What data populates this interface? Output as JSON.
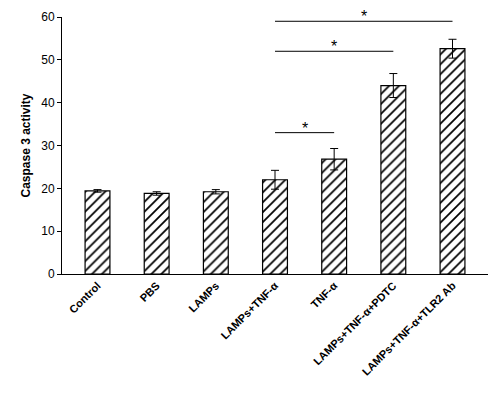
{
  "chart_data": {
    "type": "bar",
    "y_label": "Caspase 3 activity",
    "categories": [
      "Control",
      "PBS",
      "LAMPs",
      "LAMPs+TNF-α",
      "TNF-α",
      "LAMPs+TNF-α+PDTC",
      "LAMPs+TNF-α+TLR2 Ab"
    ],
    "values": [
      19.4,
      18.8,
      19.2,
      22.0,
      26.8,
      44.0,
      52.6
    ],
    "errors": [
      0.3,
      0.4,
      0.5,
      2.2,
      2.5,
      2.8,
      2.2
    ],
    "color": "#000000",
    "marker": "hatch",
    "ylim": [
      0,
      60
    ],
    "yticks": [
      0,
      10,
      20,
      30,
      40,
      50,
      60
    ],
    "grid": false,
    "annotations": [
      {
        "text": "*",
        "from": "LAMPs+TNF-α",
        "to": "TNF-α",
        "y": 33
      },
      {
        "text": "*",
        "from": "LAMPs+TNF-α",
        "to": "LAMPs+TNF-α+PDTC",
        "y": 52
      },
      {
        "text": "*",
        "from": "LAMPs+TNF-α",
        "to": "LAMPs+TNF-α+TLR2 Ab",
        "y": 59
      }
    ]
  }
}
